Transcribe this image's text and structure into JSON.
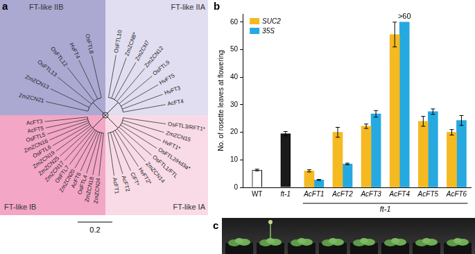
{
  "tree": {
    "label": "a",
    "scale_bar": 0.2,
    "clades": [
      {
        "name": "FT-like IIB",
        "color": "#aba8d2",
        "leaves": [
          "ZmZCN21",
          "ZmZCN13",
          "OsFTL13",
          "OsFTL12",
          "HvFT4",
          "OsFTL8"
        ]
      },
      {
        "name": "FT-like IIA",
        "color": "#e0def0",
        "leaves": [
          "OsFTL10",
          "ZmZCN8*",
          "ZmZCN7",
          "ZmZCN12",
          "OsFTL9",
          "HvFT5",
          "HvFT3",
          "AcFT4"
        ]
      },
      {
        "name": "FT-like IA",
        "color": "#f8dbe6",
        "leaves": [
          "OsFTL3/RFT1*",
          "ZmZCN15",
          "HvFT1*",
          "OsFTL2/Hd3a*",
          "OsFTL1/FTL",
          "ZmZCN14",
          "HvFT2*",
          "CiFT*",
          "AcFT2",
          "AcFT1"
        ]
      },
      {
        "name": "FT-like IB",
        "color": "#f3a6c6",
        "leaves": [
          "ZmZCN24",
          "ZmZCN18",
          "OsFTL4",
          "AcFT6",
          "ZmZCN20",
          "OsFTL7",
          "ZmZCN17",
          "ZmZCN25",
          "ZmZCN19",
          "OsFTL6",
          "ZmZCN16",
          "OsFTL5",
          "AcFT5",
          "AcFT3"
        ]
      }
    ]
  },
  "chart_data": {
    "label": "b",
    "type": "bar",
    "categories": [
      "WT",
      "ft-1",
      "AcFT1",
      "AcFT2",
      "AcFT3",
      "AcFT4",
      "AcFT5",
      "AcFT6"
    ],
    "y_label": "No. of rosette leaves at flowering",
    "ylim": [
      0,
      63
    ],
    "yticks": [
      0,
      10,
      20,
      30,
      40,
      50,
      60
    ],
    "grid": false,
    "legend": "top-left",
    "annotations": [
      {
        "text": "ft-1",
        "span": [
          "AcFT1",
          "AcFT6"
        ]
      }
    ],
    "series": [
      {
        "colors": [
          "#ffffff",
          "#1a1a1a",
          null,
          null,
          null,
          null,
          null,
          null
        ],
        "values": [
          6.3,
          19.5,
          null,
          null,
          null,
          null,
          null,
          null
        ],
        "errors": [
          0.3,
          0.8,
          null,
          null,
          null,
          null,
          null,
          null
        ]
      },
      {
        "name": "SUC2",
        "color": "#f5b921",
        "values": [
          null,
          null,
          6,
          20,
          22.2,
          55.5,
          24,
          20
        ],
        "errors": [
          null,
          null,
          0.4,
          1.8,
          0.8,
          4.5,
          1.8,
          1
        ]
      },
      {
        "name": "35S",
        "color": "#25a9e0",
        "values": [
          null,
          null,
          2.7,
          8.5,
          26.7,
          60,
          27.5,
          24.3
        ],
        "errors": [
          null,
          null,
          0.2,
          0.3,
          1.2,
          null,
          1,
          1.8
        ],
        "value_labels": [
          null,
          null,
          null,
          null,
          null,
          ">60",
          null,
          null
        ]
      }
    ]
  },
  "photo": {
    "label": "c"
  }
}
